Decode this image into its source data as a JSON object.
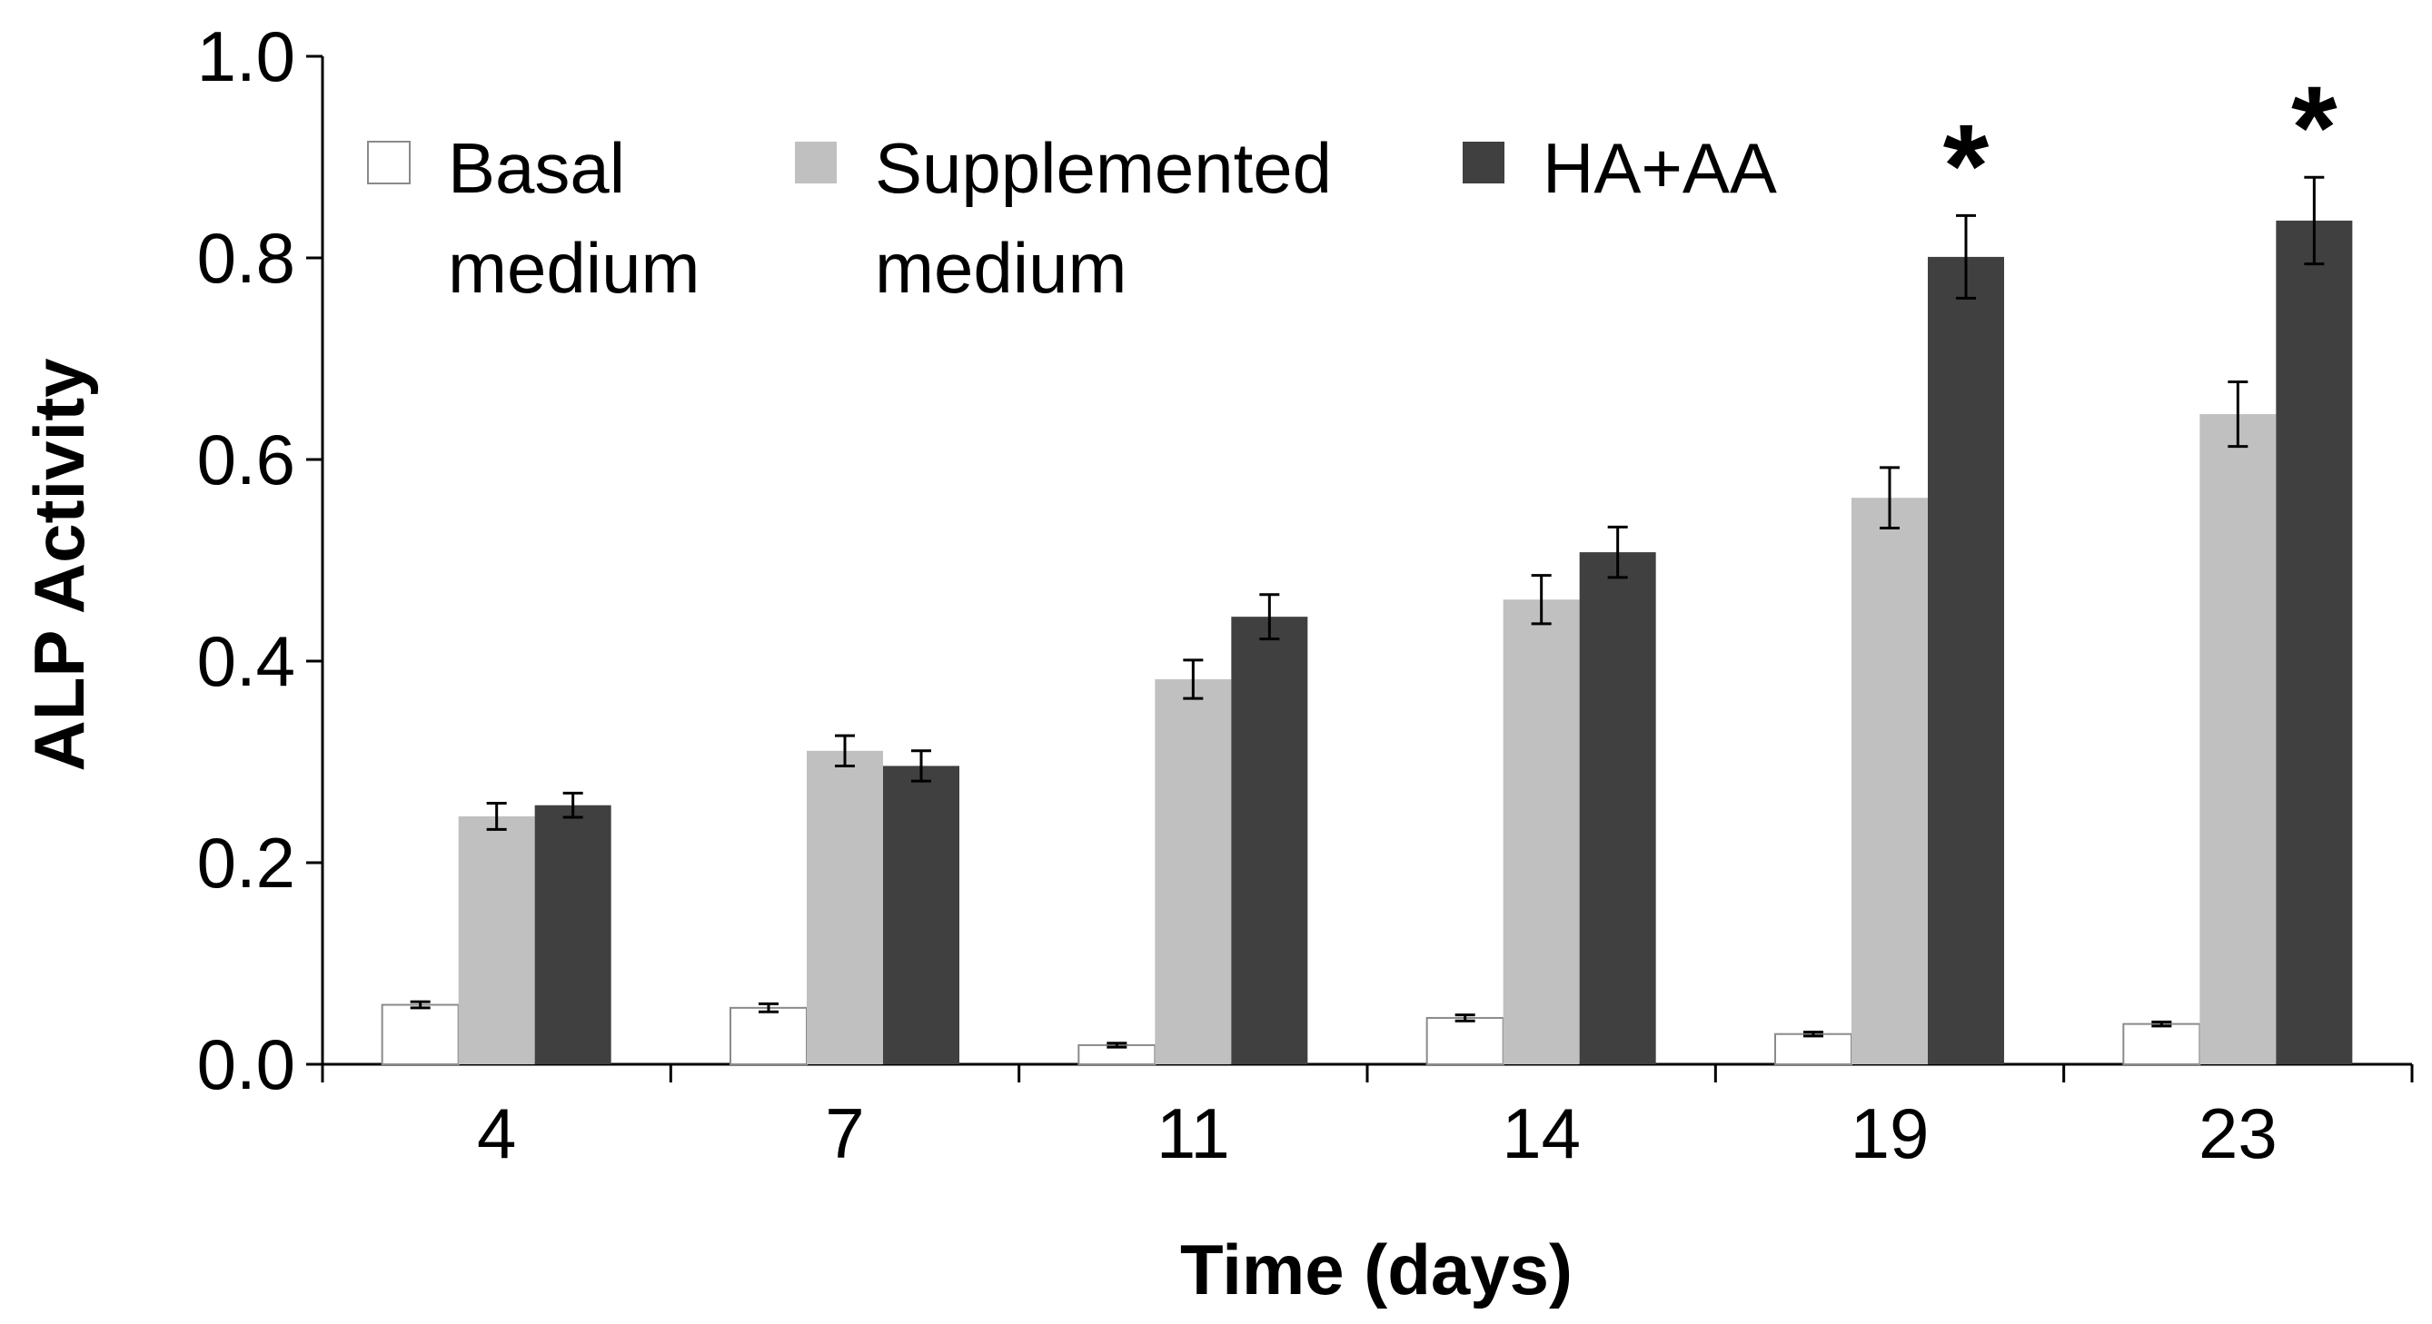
{
  "chart_data": {
    "type": "bar",
    "title": "",
    "xlabel": "Time (days)",
    "ylabel": "ALP Activity",
    "categories": [
      "4",
      "7",
      "11",
      "14",
      "19",
      "23"
    ],
    "ylim": [
      0,
      1.0
    ],
    "yticks": [
      "0.0",
      "0.2",
      "0.4",
      "0.6",
      "0.8",
      "1.0"
    ],
    "ytick_values": [
      0,
      0.2,
      0.4,
      0.6,
      0.8,
      1.0
    ],
    "grid": false,
    "legend_position": "top-left",
    "series": [
      {
        "name": "Basal medium",
        "name_lines": [
          "Basal",
          "medium"
        ],
        "color": "#ffffff",
        "values": [
          0.059,
          0.056,
          0.019,
          0.046,
          0.03,
          0.04
        ],
        "errors": [
          0.003,
          0.004,
          0.002,
          0.003,
          0.002,
          0.002
        ]
      },
      {
        "name": "Supplemented medium",
        "name_lines": [
          "Supplemented",
          "medium"
        ],
        "color": "#c0c0c0",
        "values": [
          0.246,
          0.311,
          0.382,
          0.461,
          0.562,
          0.645
        ],
        "errors": [
          0.013,
          0.015,
          0.019,
          0.024,
          0.03,
          0.032
        ]
      },
      {
        "name": "HA+AA",
        "name_lines": [
          "HA+AA"
        ],
        "color": "#404040",
        "values": [
          0.257,
          0.296,
          0.444,
          0.508,
          0.801,
          0.837
        ],
        "errors": [
          0.012,
          0.015,
          0.022,
          0.025,
          0.041,
          0.043
        ]
      }
    ],
    "annotations": [
      {
        "category": "19",
        "series": "HA+AA",
        "text": "*"
      },
      {
        "category": "23",
        "series": "HA+AA",
        "text": "*"
      }
    ]
  }
}
